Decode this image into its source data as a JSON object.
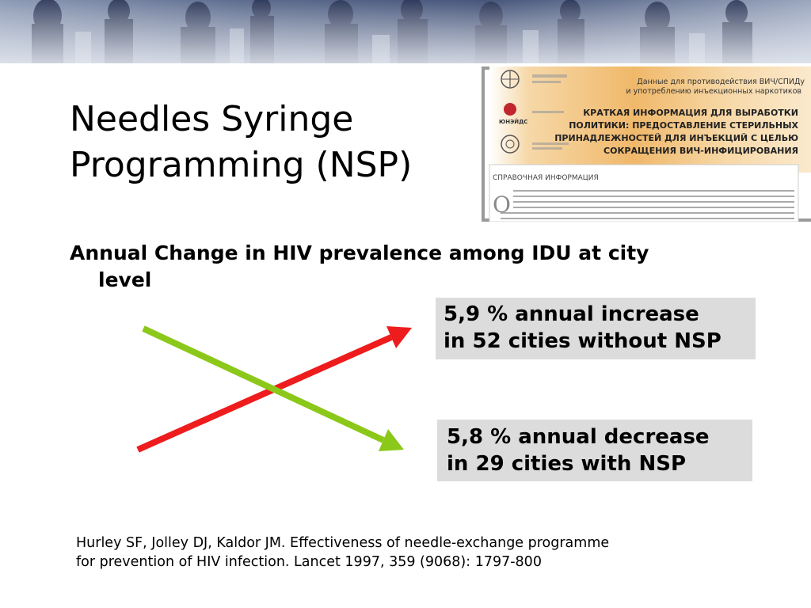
{
  "slide": {
    "title_lines": [
      "Needles Syringe",
      "Programming (NSP)"
    ],
    "subheading_lines": [
      "Annual Change in HIV prevalence among IDU at city",
      "level"
    ],
    "callouts": {
      "increase": {
        "lines": [
          "5,9 % annual increase",
          "in 52 cities without NSP"
        ],
        "arrow_color": "#ee1c1c"
      },
      "decrease": {
        "lines": [
          "5,8 % annual decrease",
          "in 29 cities with NSP"
        ],
        "arrow_color": "#8cc81a"
      }
    },
    "citation_lines": [
      "Hurley SF, Jolley DJ, Kaldor JM. Effectiveness of needle-exchange programme",
      "for prevention of HIV infection. Lancet 1997, 359 (9068): 1797-800"
    ]
  },
  "document_thumbnail": {
    "header_lines": [
      "Данные для противодействия ВИЧ/СПИДу",
      "и употреблению инъекционных наркотиков"
    ],
    "title_lines": [
      "КРАТКАЯ ИНФОРМАЦИЯ ДЛЯ ВЫРАБОТКИ",
      "ПОЛИТИКИ: ПРЕДОСТАВЛЕНИЕ СТЕРИЛЬНЫХ",
      "ПРИНАДЛЕЖНОСТЕЙ ДЛЯ ИНЪЕКЦИЙ С ЦЕЛЬЮ",
      "СОКРАЩЕНИЯ ВИЧ-ИНФИЦИРОВАНИЯ"
    ],
    "section_label": "СПРАВОЧНАЯ ИНФОРМАЦИЯ",
    "logo_unaids_text": "ЮНЭЙДС",
    "drop_cap": "О"
  },
  "colors": {
    "banner_dark": "#3a4a6e",
    "banner_light": "#b6c0d4",
    "callout_bg": "#dcdcdc",
    "doc_bg": "#f3c98a"
  }
}
